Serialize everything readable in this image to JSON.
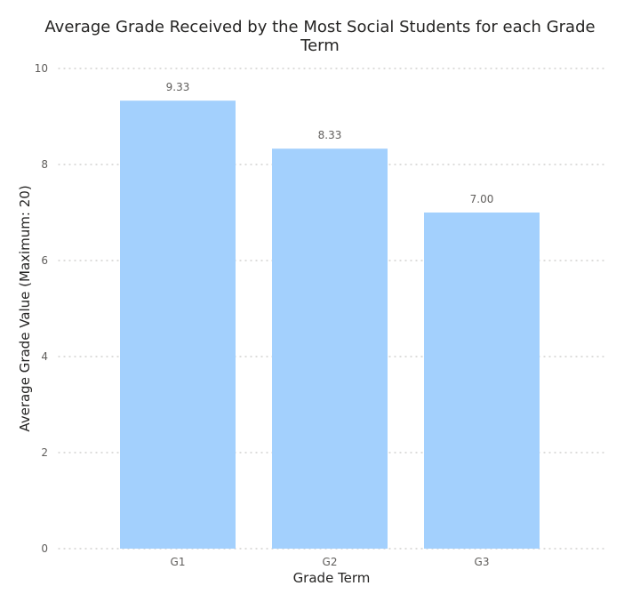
{
  "chart_data": {
    "type": "bar",
    "title_lines": [
      "Average Grade Received by the Most Social Students for each Grade",
      "Term"
    ],
    "xlabel": "Grade Term",
    "ylabel": "Average Grade Value (Maximum: 20)",
    "categories": [
      "G1",
      "G2",
      "G3"
    ],
    "values": [
      9.33,
      8.33,
      7.0
    ],
    "data_labels": [
      "9.33",
      "8.33",
      "7.00"
    ],
    "ylim": [
      0,
      10
    ],
    "yticks": [
      0,
      2,
      4,
      6,
      8,
      10
    ],
    "grid": true,
    "legend": "none",
    "colors": {
      "bar": "#a3d0fd",
      "grid": "#c8c6c4",
      "tick_text": "#605e5c",
      "axis_title_text": "#252423"
    }
  }
}
